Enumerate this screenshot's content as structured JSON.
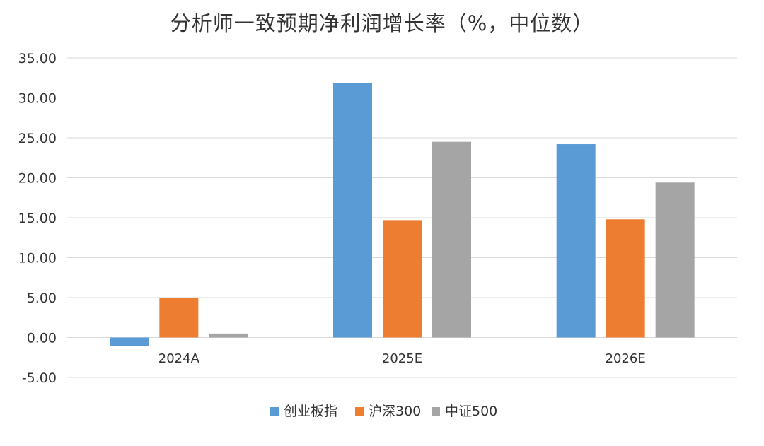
{
  "chart_data": {
    "type": "bar",
    "title": "分析师一致预期净利润增长率（%，中位数）",
    "categories": [
      "2024A",
      "2025E",
      "2026E"
    ],
    "series": [
      {
        "name": "创业板指",
        "color": "#5b9bd5",
        "values": [
          -1.1,
          31.9,
          24.2
        ]
      },
      {
        "name": "沪深300",
        "color": "#ed7d31",
        "values": [
          5.0,
          14.7,
          14.8
        ]
      },
      {
        "name": "中证500",
        "color": "#a5a5a5",
        "values": [
          0.5,
          24.5,
          19.4
        ]
      }
    ],
    "ylim": [
      -5,
      35
    ],
    "yticks": [
      "35.00",
      "30.00",
      "25.00",
      "20.00",
      "15.00",
      "10.00",
      "5.00",
      "0.00",
      "-5.00"
    ],
    "grid": true,
    "legend_position": "bottom"
  }
}
